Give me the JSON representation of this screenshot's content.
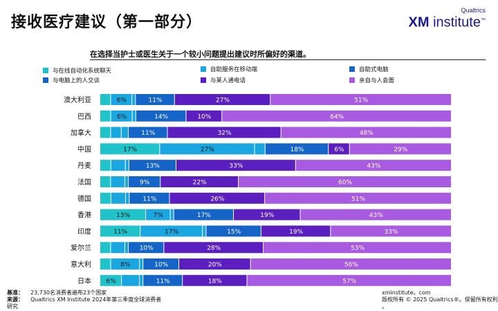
{
  "header": {
    "title": "接收医疗建议（第一部分）",
    "logo_small": "Qualtrics",
    "logo_xm": "XM",
    "logo_word": "institute",
    "logo_tm": "™"
  },
  "subtitle": "在选择当护士或医生关于一个较小问题提出建议时所偏好的渠道。",
  "legend": [
    {
      "label": "与在线自动化系统聊天",
      "color": "#1fc3c9"
    },
    {
      "label": "自助服务在移动端",
      "color": "#1aa6e0"
    },
    {
      "label": "自助式电脑",
      "color": "#1565c8"
    },
    {
      "label": "与电脑上的人交谈",
      "color": "#1565c8"
    },
    {
      "label": "与某人通电话",
      "color": "#5b1fc0"
    },
    {
      "label": "亲自与人会面",
      "color": "#a85ae0"
    }
  ],
  "chart_data": {
    "type": "bar",
    "orientation": "horizontal-stacked-100",
    "categories": [
      "澳大利亚",
      "巴西",
      "加拿大",
      "中国",
      "丹麦",
      "法国",
      "德国",
      "香港",
      "印度",
      "爱尔兰",
      "意大利",
      "日本"
    ],
    "series": [
      {
        "name": "与在线自动化系统聊天",
        "color": "#1fc3c9",
        "values": [
          3,
          3,
          3,
          17,
          3,
          3,
          3,
          13,
          11,
          3,
          3,
          6
        ]
      },
      {
        "name": "自助服务在移动端",
        "color": "#1aa6e0",
        "values": [
          6,
          6,
          3,
          27,
          4,
          4,
          4,
          7,
          17,
          4,
          8,
          5
        ]
      },
      {
        "name": "自助式电脑",
        "color": "#1aa6e0",
        "values": [
          1,
          1,
          2,
          3,
          1,
          1,
          1,
          1,
          1,
          1,
          1,
          1
        ]
      },
      {
        "name": "与电脑上的人交谈",
        "color": "#1565c8",
        "values": [
          11,
          14,
          11,
          18,
          13,
          9,
          11,
          17,
          15,
          10,
          10,
          11
        ]
      },
      {
        "name": "与某人通电话",
        "color": "#5b1fc0",
        "values": [
          27,
          10,
          32,
          6,
          33,
          22,
          26,
          19,
          19,
          28,
          20,
          18
        ]
      },
      {
        "name": "亲自与人会面",
        "color": "#a85ae0",
        "values": [
          51,
          64,
          48,
          29,
          43,
          60,
          51,
          43,
          33,
          53,
          56,
          57
        ]
      }
    ],
    "xlim": [
      0,
      100
    ],
    "grid": false,
    "legend_position": "top"
  },
  "footer": {
    "base_label": "基准：",
    "base_text": "23,730名消费者遍布23个国家",
    "source_label": "来源：",
    "source_text": "Qualtrics XM Institute 2024年第三季度全球消费者",
    "source_text2": "研究",
    "site": "xminstitute。com",
    "copyright": "版权所有 © 2025 Qualtrics®。保留所有权利",
    "copyright2": "。"
  }
}
